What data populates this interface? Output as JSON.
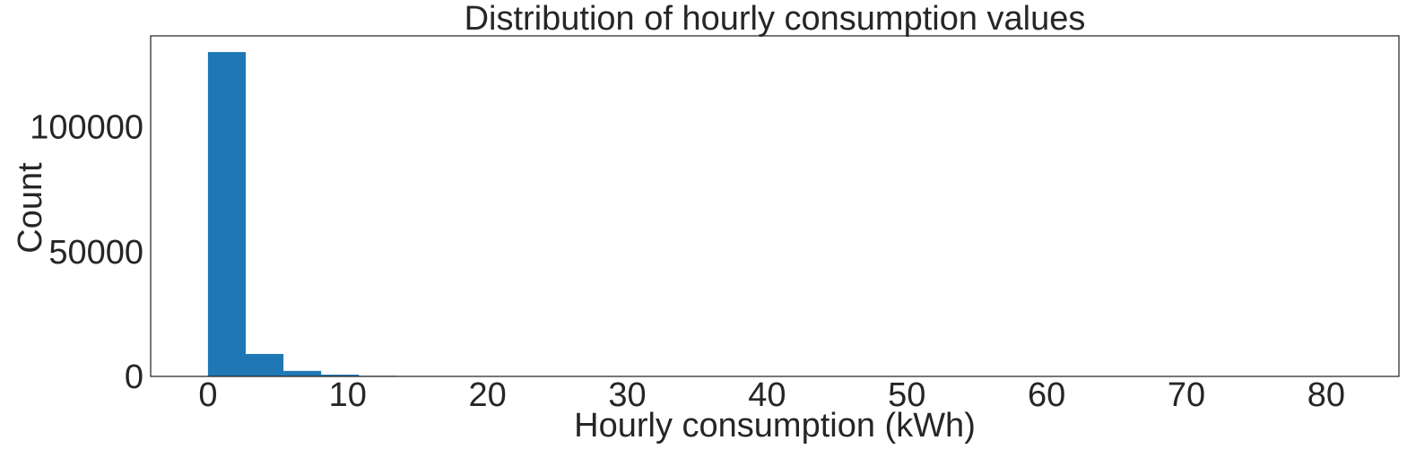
{
  "chart_data": {
    "type": "bar",
    "title": "Distribution of hourly consumption values",
    "xlabel": "Hourly consumption (kWh)",
    "ylabel": "Count",
    "xlim": [
      -4.1,
      85.2
    ],
    "ylim": [
      0,
      136500
    ],
    "xticks": [
      0,
      10,
      20,
      30,
      40,
      50,
      60,
      70,
      80
    ],
    "yticks": [
      0,
      50000,
      100000
    ],
    "bin_width": 2.7,
    "bins": [
      {
        "x0": 0.0,
        "x1": 2.7,
        "value": 130000
      },
      {
        "x0": 2.7,
        "x1": 5.4,
        "value": 9000
      },
      {
        "x0": 5.4,
        "x1": 8.1,
        "value": 2200
      },
      {
        "x0": 8.1,
        "x1": 10.8,
        "value": 700
      },
      {
        "x0": 10.8,
        "x1": 13.5,
        "value": 250
      },
      {
        "x0": 13.5,
        "x1": 16.2,
        "value": 100
      },
      {
        "x0": 16.2,
        "x1": 18.9,
        "value": 50
      }
    ],
    "bar_color": "#1f77b4",
    "grid": false,
    "legend": "none"
  }
}
